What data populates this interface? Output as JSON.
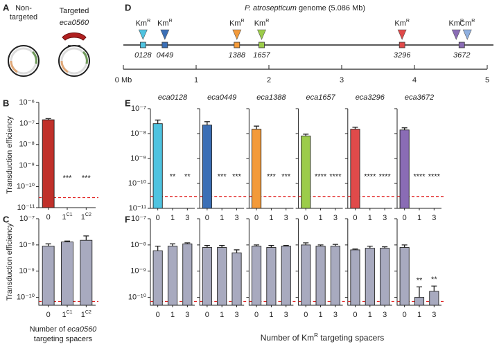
{
  "panel_labels": [
    "A",
    "B",
    "C",
    "D",
    "E",
    "F"
  ],
  "plasmids": {
    "non_targeted": [
      "Non-",
      "targeted"
    ],
    "targeted": "Targeted",
    "target_gene": "eca0560"
  },
  "genome_map": {
    "title": [
      "P. atrosepticum",
      " genome (5.086 Mb)"
    ],
    "xlim": [
      0,
      5
    ],
    "xticks": [
      {
        "value": 0,
        "label": "0 Mb"
      },
      1,
      2,
      3,
      4,
      5
    ],
    "markers": [
      {
        "position": 0.27,
        "locus": "0128",
        "color": "#4fc3e0",
        "resistance": [
          {
            "text": [
              "Km",
              "R"
            ],
            "color": "#4fc3e0"
          }
        ]
      },
      {
        "position": 0.57,
        "locus": "0449",
        "color": "#3b6fb6",
        "resistance": [
          {
            "text": [
              "Km",
              "R"
            ],
            "color": "#3b6fb6"
          }
        ]
      },
      {
        "position": 1.56,
        "locus": "1388",
        "color": "#f39a3a",
        "resistance": [
          {
            "text": [
              "Km",
              "R"
            ],
            "color": "#f39a3a"
          }
        ]
      },
      {
        "position": 1.9,
        "locus": "1657",
        "color": "#9ccc4a",
        "resistance": [
          {
            "text": [
              "Km",
              "R"
            ],
            "color": "#9ccc4a"
          }
        ]
      },
      {
        "position": 3.83,
        "locus": "3296",
        "color": "#e04a4a",
        "resistance": [
          {
            "text": [
              "Km",
              "R"
            ],
            "color": "#e04a4a"
          }
        ]
      },
      {
        "position": 4.65,
        "locus": "3672",
        "color": "#8a6cb5",
        "resistance": [
          {
            "text": [
              "Km",
              "R"
            ],
            "color": "#8a6cb5"
          },
          {
            "text": [
              "Cm",
              "R"
            ],
            "color": "#8fb0e0"
          }
        ]
      }
    ]
  },
  "shared_x_label": [
    "Number of Km",
    "R",
    " targeting spacers"
  ],
  "chart_data": [
    {
      "type": "bar",
      "y_label": "Transduction efficiency",
      "categories": [
        "0",
        "1",
        "1"
      ],
      "category_superscripts": [
        null,
        "C1",
        "C2"
      ],
      "values": [
        1.5e-07,
        null,
        null
      ],
      "errors": [
        2e-08,
        null,
        null
      ],
      "significance": [
        null,
        "***",
        "***"
      ],
      "color": "#c0302a",
      "log_scale": true,
      "ylim": [
        1e-11,
        1e-06
      ],
      "yticks": [
        {
          "value": 1e-06,
          "label": "10⁻⁶"
        },
        {
          "value": 1e-07,
          "label": "10⁻⁷"
        },
        {
          "value": 1e-08,
          "label": "10⁻⁸"
        },
        {
          "value": 1e-09,
          "label": "10⁻⁹"
        },
        {
          "value": 1e-10,
          "label": "10⁻¹⁰"
        },
        {
          "value": 1e-11,
          "label": "10⁻¹¹"
        }
      ],
      "threshold": 3e-11
    },
    {
      "type": "bar",
      "y_label": "Transduction efficiency",
      "x_label": [
        [
          "Number of ",
          "eca0560"
        ],
        [
          "targeting spacers"
        ]
      ],
      "categories": [
        "0",
        "1",
        "1"
      ],
      "category_superscripts": [
        null,
        "C1",
        "C2"
      ],
      "values": [
        9e-09,
        1.3e-08,
        1.5e-08
      ],
      "errors": [
        2e-09,
        1e-09,
        7e-09
      ],
      "significance": [
        null,
        null,
        null
      ],
      "color": "#a8aabf",
      "log_scale": true,
      "ylim": [
        5e-11,
        1e-07
      ],
      "yticks": [
        {
          "value": 1e-07,
          "label": "10⁻⁷"
        },
        {
          "value": 1e-08,
          "label": "10⁻⁸"
        },
        {
          "value": 1e-09,
          "label": "10⁻⁹"
        },
        {
          "value": 1e-10,
          "label": "10⁻¹⁰"
        }
      ],
      "threshold": 7e-11
    },
    {
      "type": "bar",
      "title": "eca0128",
      "categories": [
        "0",
        "1",
        "3"
      ],
      "values": [
        2.5e-08,
        null,
        null
      ],
      "errors": [
        1e-08,
        null,
        null
      ],
      "significance": [
        null,
        "**",
        "**"
      ],
      "color": "#4fc3e0",
      "log_scale": true,
      "ylim": [
        1e-11,
        1e-07
      ],
      "yticks": [
        {
          "value": 1e-07,
          "label": "10⁻⁷"
        },
        {
          "value": 1e-08,
          "label": "10⁻⁸"
        },
        {
          "value": 1e-09,
          "label": "10⁻⁹"
        },
        {
          "value": 1e-10,
          "label": "10⁻¹⁰"
        },
        {
          "value": 1e-11,
          "label": "10⁻¹¹"
        }
      ],
      "threshold": 3e-11
    },
    {
      "type": "bar",
      "title": "eca0449",
      "categories": [
        "0",
        "1",
        "3"
      ],
      "values": [
        2.2e-08,
        null,
        null
      ],
      "errors": [
        8e-09,
        null,
        null
      ],
      "significance": [
        null,
        "***",
        "***"
      ],
      "color": "#3b6fb6",
      "log_scale": true,
      "ylim": [
        1e-11,
        1e-07
      ],
      "yticks": [
        1e-07,
        1e-08,
        1e-09,
        1e-10,
        1e-11
      ],
      "threshold": 3e-11
    },
    {
      "type": "bar",
      "title": "eca1388",
      "categories": [
        "0",
        "1",
        "3"
      ],
      "values": [
        1.5e-08,
        null,
        null
      ],
      "errors": [
        5e-09,
        null,
        null
      ],
      "significance": [
        null,
        "***",
        "***"
      ],
      "color": "#f39a3a",
      "log_scale": true,
      "ylim": [
        1e-11,
        1e-07
      ],
      "yticks": [
        1e-07,
        1e-08,
        1e-09,
        1e-10,
        1e-11
      ],
      "threshold": 3e-11
    },
    {
      "type": "bar",
      "title": "eca1657",
      "categories": [
        "0",
        "1",
        "3"
      ],
      "values": [
        8e-09,
        null,
        null
      ],
      "errors": [
        1.5e-09,
        null,
        null
      ],
      "significance": [
        null,
        "****",
        "****"
      ],
      "color": "#9ccc4a",
      "log_scale": true,
      "ylim": [
        1e-11,
        1e-07
      ],
      "yticks": [
        1e-07,
        1e-08,
        1e-09,
        1e-10,
        1e-11
      ],
      "threshold": 3e-11
    },
    {
      "type": "bar",
      "title": "eca3296",
      "categories": [
        "0",
        "1",
        "3"
      ],
      "values": [
        1.5e-08,
        null,
        null
      ],
      "errors": [
        3e-09,
        null,
        null
      ],
      "significance": [
        null,
        "****",
        "****"
      ],
      "color": "#e04a4a",
      "log_scale": true,
      "ylim": [
        1e-11,
        1e-07
      ],
      "yticks": [
        1e-07,
        1e-08,
        1e-09,
        1e-10,
        1e-11
      ],
      "threshold": 3e-11
    },
    {
      "type": "bar",
      "title": "eca3672",
      "categories": [
        "0",
        "1",
        "3"
      ],
      "values": [
        1.4e-08,
        null,
        null
      ],
      "errors": [
        3e-09,
        null,
        null
      ],
      "significance": [
        null,
        "****",
        "****"
      ],
      "color": "#8a6cb5",
      "log_scale": true,
      "ylim": [
        1e-11,
        1e-07
      ],
      "yticks": [
        1e-07,
        1e-08,
        1e-09,
        1e-10,
        1e-11
      ],
      "threshold": 3e-11
    },
    {
      "type": "bar",
      "categories": [
        "0",
        "1",
        "3"
      ],
      "values": [
        6e-09,
        9e-09,
        1.1e-08
      ],
      "errors": [
        3e-09,
        2e-09,
        1e-09
      ],
      "significance": [
        null,
        null,
        null
      ],
      "color": "#a8aabf",
      "log_scale": true,
      "ylim": [
        5e-11,
        1e-07
      ],
      "yticks": [
        {
          "value": 1e-07,
          "label": "10⁻⁷"
        },
        {
          "value": 1e-08,
          "label": "10⁻⁸"
        },
        {
          "value": 1e-09,
          "label": "10⁻⁹"
        },
        {
          "value": 1e-10,
          "label": "10⁻¹⁰"
        }
      ],
      "threshold": 7e-11
    },
    {
      "type": "bar",
      "categories": [
        "0",
        "1",
        "3"
      ],
      "values": [
        8e-09,
        8e-09,
        5e-09
      ],
      "errors": [
        1.5e-09,
        1.5e-09,
        1.5e-09
      ],
      "significance": [
        null,
        null,
        null
      ],
      "color": "#a8aabf",
      "log_scale": true,
      "ylim": [
        5e-11,
        1e-07
      ],
      "yticks": [
        1e-07,
        1e-08,
        1e-09,
        1e-10
      ],
      "threshold": 7e-11
    },
    {
      "type": "bar",
      "categories": [
        "0",
        "1",
        "3"
      ],
      "values": [
        9e-09,
        8e-09,
        9e-09
      ],
      "errors": [
        1e-09,
        1.5e-09,
        5e-10
      ],
      "significance": [
        null,
        null,
        null
      ],
      "color": "#a8aabf",
      "log_scale": true,
      "ylim": [
        5e-11,
        1e-07
      ],
      "yticks": [
        1e-07,
        1e-08,
        1e-09,
        1e-10
      ],
      "threshold": 7e-11
    },
    {
      "type": "bar",
      "categories": [
        "0",
        "1",
        "3"
      ],
      "values": [
        1e-08,
        9e-09,
        9e-09
      ],
      "errors": [
        2e-09,
        1e-09,
        1.5e-09
      ],
      "significance": [
        null,
        null,
        null
      ],
      "color": "#a8aabf",
      "log_scale": true,
      "ylim": [
        5e-11,
        1e-07
      ],
      "yticks": [
        1e-07,
        1e-08,
        1e-09,
        1e-10
      ],
      "threshold": 7e-11
    },
    {
      "type": "bar",
      "categories": [
        "0",
        "1",
        "3"
      ],
      "values": [
        6.5e-09,
        7.5e-09,
        7.5e-09
      ],
      "errors": [
        5e-10,
        1.5e-09,
        1e-09
      ],
      "significance": [
        null,
        null,
        null
      ],
      "color": "#a8aabf",
      "log_scale": true,
      "ylim": [
        5e-11,
        1e-07
      ],
      "yticks": [
        1e-07,
        1e-08,
        1e-09,
        1e-10
      ],
      "threshold": 7e-11
    },
    {
      "type": "bar",
      "categories": [
        "0",
        "1",
        "3"
      ],
      "values": [
        8e-09,
        1e-10,
        1.7e-10
      ],
      "errors": [
        2e-09,
        1.5e-10,
        1e-10
      ],
      "significance": [
        null,
        "**",
        "**"
      ],
      "color": "#a8aabf",
      "log_scale": true,
      "ylim": [
        5e-11,
        1e-07
      ],
      "yticks": [
        1e-07,
        1e-08,
        1e-09,
        1e-10
      ],
      "threshold": 7e-11
    }
  ]
}
